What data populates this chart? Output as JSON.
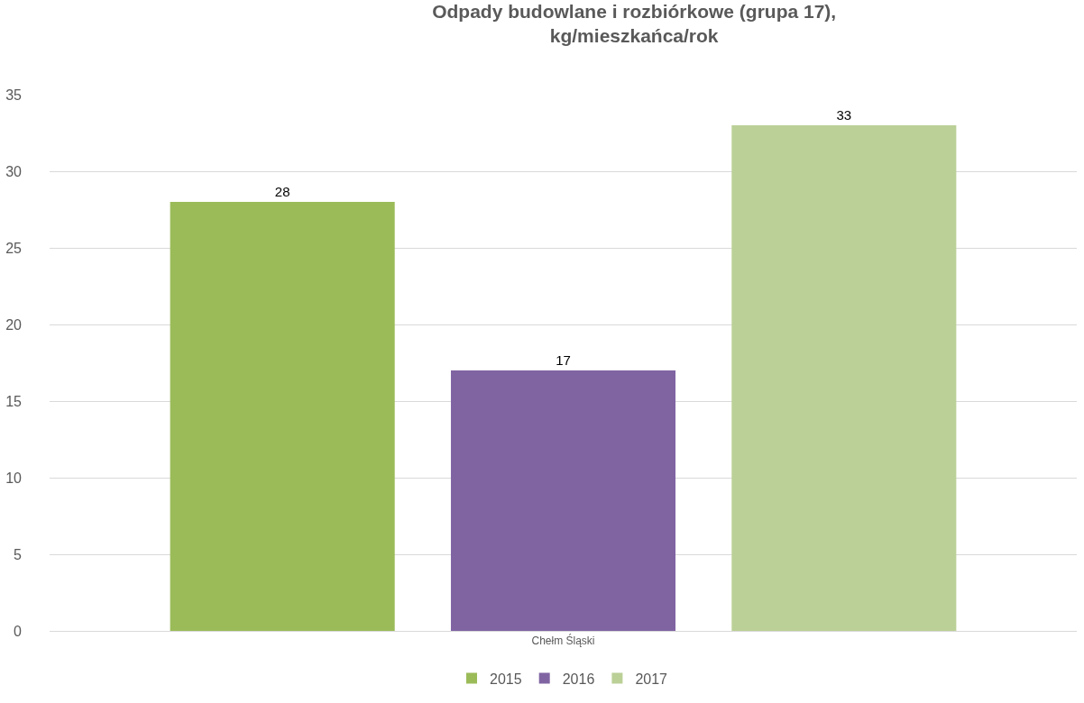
{
  "chart_data": {
    "type": "bar",
    "title": "Odpady budowlane i rozbiórkowe (grupa 17),\nkg/mieszkańca/rok",
    "categories": [
      "Chełm Śląski"
    ],
    "series": [
      {
        "name": "2015",
        "color": "#9bbb59",
        "values": [
          28
        ]
      },
      {
        "name": "2016",
        "color": "#8064a2",
        "values": [
          17
        ]
      },
      {
        "name": "2017",
        "color": "#bbd097",
        "values": [
          33
        ]
      }
    ],
    "ylim": [
      0,
      35
    ],
    "yticks": [
      0,
      5,
      10,
      15,
      20,
      25,
      30,
      35
    ],
    "grid": "y",
    "legend": "bottom",
    "data_labels": true
  }
}
